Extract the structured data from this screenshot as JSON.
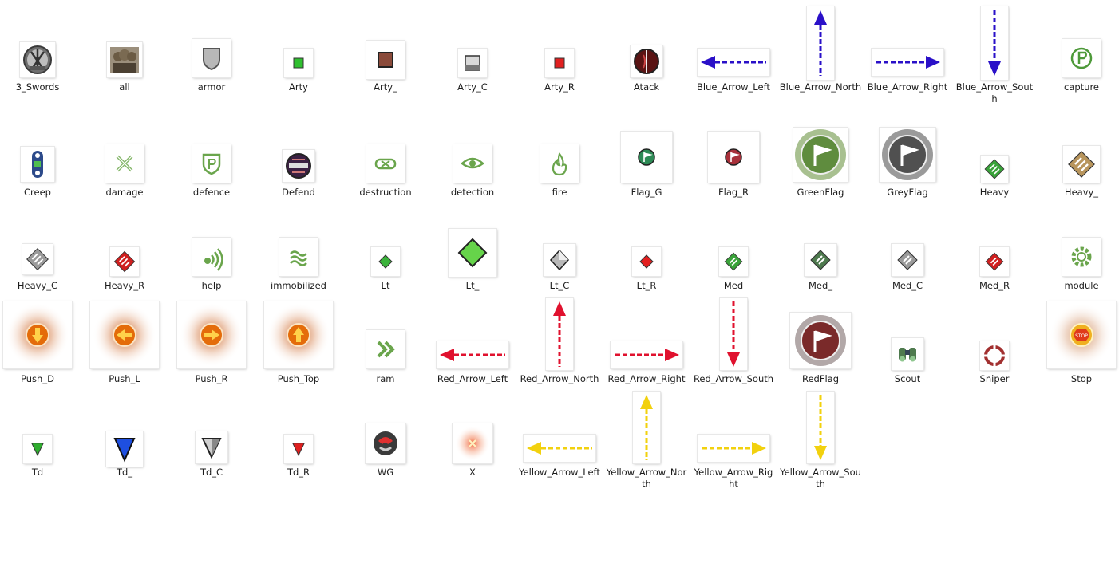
{
  "files": [
    {
      "label": "3_Swords",
      "icon": "swords-medal-icon"
    },
    {
      "label": "all",
      "icon": "soldiers-group-icon"
    },
    {
      "label": "armor",
      "icon": "armor-shield-icon"
    },
    {
      "label": "Arty",
      "icon": "green-square-icon"
    },
    {
      "label": "Arty_",
      "icon": "brown-square-icon"
    },
    {
      "label": "Arty_C",
      "icon": "grey-square-icon"
    },
    {
      "label": "Arty_R",
      "icon": "red-square-icon"
    },
    {
      "label": "Atack",
      "icon": "attack-icon"
    },
    {
      "label": "Blue_Arrow_Left",
      "icon": "blue-arrow-left-icon"
    },
    {
      "label": "Blue_Arrow_North",
      "icon": "blue-arrow-north-icon"
    },
    {
      "label": "Blue_Arrow_Right",
      "icon": "blue-arrow-right-icon"
    },
    {
      "label": "Blue_Arrow_South",
      "icon": "blue-arrow-south-icon"
    },
    {
      "label": "capture",
      "icon": "capture-icon"
    },
    {
      "label": "Creep",
      "icon": "creep-icon"
    },
    {
      "label": "damage",
      "icon": "damage-icon"
    },
    {
      "label": "defence",
      "icon": "defence-icon"
    },
    {
      "label": "Defend",
      "icon": "defend-icon"
    },
    {
      "label": "destruction",
      "icon": "destruction-icon"
    },
    {
      "label": "detection",
      "icon": "eye-icon"
    },
    {
      "label": "fire",
      "icon": "fire-icon"
    },
    {
      "label": "Flag_G",
      "icon": "flag-green-icon"
    },
    {
      "label": "Flag_R",
      "icon": "flag-red-icon"
    },
    {
      "label": "GreenFlag",
      "icon": "green-flag-icon"
    },
    {
      "label": "GreyFlag",
      "icon": "grey-flag-icon"
    },
    {
      "label": "Heavy",
      "icon": "heavy-green-icon"
    },
    {
      "label": "Heavy_",
      "icon": "heavy-brown-icon"
    },
    {
      "label": "Heavy_C",
      "icon": "heavy-grey-icon"
    },
    {
      "label": "Heavy_R",
      "icon": "heavy-red-icon"
    },
    {
      "label": "help",
      "icon": "help-signal-icon"
    },
    {
      "label": "immobilized",
      "icon": "immobilized-icon"
    },
    {
      "label": "Lt",
      "icon": "light-green-icon"
    },
    {
      "label": "Lt_",
      "icon": "light-big-green-icon"
    },
    {
      "label": "Lt_C",
      "icon": "light-grey-icon"
    },
    {
      "label": "Lt_R",
      "icon": "light-red-icon"
    },
    {
      "label": "Med",
      "icon": "medium-green-icon"
    },
    {
      "label": "Med_",
      "icon": "medium-dark-icon"
    },
    {
      "label": "Med_C",
      "icon": "medium-grey-icon"
    },
    {
      "label": "Med_R",
      "icon": "medium-red-icon"
    },
    {
      "label": "module",
      "icon": "gear-icon"
    },
    {
      "label": "Push_D",
      "icon": "push-down-icon"
    },
    {
      "label": "Push_L",
      "icon": "push-left-icon"
    },
    {
      "label": "Push_R",
      "icon": "push-right-icon"
    },
    {
      "label": "Push_Top",
      "icon": "push-top-icon"
    },
    {
      "label": "ram",
      "icon": "ram-chevrons-icon"
    },
    {
      "label": "Red_Arrow_Left",
      "icon": "red-arrow-left-icon"
    },
    {
      "label": "Red_Arrow_North",
      "icon": "red-arrow-north-icon"
    },
    {
      "label": "Red_Arrow_Right",
      "icon": "red-arrow-right-icon"
    },
    {
      "label": "Red_Arrow_South",
      "icon": "red-arrow-south-icon"
    },
    {
      "label": "RedFlag",
      "icon": "red-flag-icon"
    },
    {
      "label": "Scout",
      "icon": "binoculars-icon"
    },
    {
      "label": "Sniper",
      "icon": "sniper-crosshair-icon"
    },
    {
      "label": "Stop",
      "icon": "stop-sign-icon"
    },
    {
      "label": "Td",
      "icon": "td-green-icon"
    },
    {
      "label": "Td_",
      "icon": "td-blue-icon"
    },
    {
      "label": "Td_C",
      "icon": "td-grey-icon"
    },
    {
      "label": "Td_R",
      "icon": "td-red-icon"
    },
    {
      "label": "WG",
      "icon": "wg-logo-icon"
    },
    {
      "label": "X",
      "icon": "x-marker-icon"
    },
    {
      "label": "Yellow_Arrow_Left",
      "icon": "yellow-arrow-left-icon"
    },
    {
      "label": "Yellow_Arrow_North",
      "icon": "yellow-arrow-north-icon"
    },
    {
      "label": "Yellow_Arrow_Right",
      "icon": "yellow-arrow-right-icon"
    },
    {
      "label": "Yellow_Arrow_South",
      "icon": "yellow-arrow-south-icon"
    }
  ],
  "colors": {
    "blue": "#2a10c8",
    "red": "#e0112e",
    "yellow": "#f2d10e",
    "green": "#34b03a"
  }
}
